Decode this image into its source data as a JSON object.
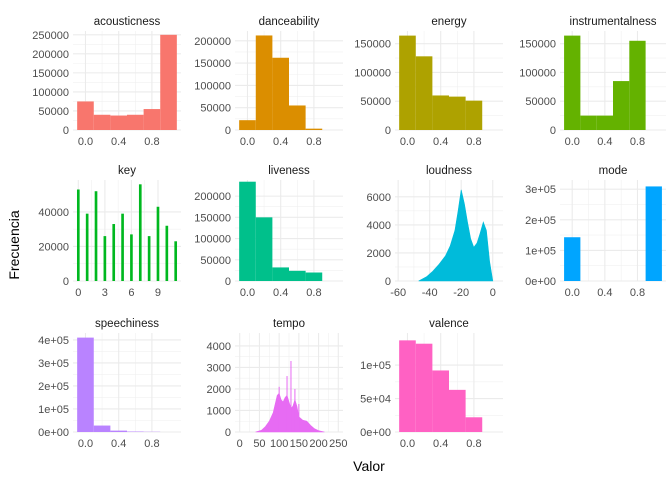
{
  "chart_data": {
    "type": "bar",
    "xlabel": "Valor",
    "ylabel": "Frecuencia",
    "panels": [
      {
        "title": "acousticness",
        "color": "#F8766D",
        "ymax": 260000,
        "xmin": -0.15,
        "xmax": 1.15,
        "yticks": [
          0,
          50000,
          100000,
          150000,
          200000,
          250000
        ],
        "ytick_labels": [
          "0",
          "50000",
          "100000",
          "150000",
          "200000",
          "250000"
        ],
        "xticks": [
          0,
          0.4,
          0.8
        ],
        "xtick_labels": [
          "0.0",
          "0.4",
          "0.8"
        ],
        "bins": [
          [
            -0.1,
            0.1,
            75000
          ],
          [
            0.1,
            0.3,
            40000
          ],
          [
            0.3,
            0.5,
            38000
          ],
          [
            0.5,
            0.7,
            40000
          ],
          [
            0.7,
            0.9,
            55000
          ],
          [
            0.9,
            1.1,
            250000
          ]
        ]
      },
      {
        "title": "danceability",
        "color": "#DB8E00",
        "ymax": 222000,
        "xmin": -0.15,
        "xmax": 1.15,
        "yticks": [
          0,
          50000,
          100000,
          150000,
          200000
        ],
        "ytick_labels": [
          "0",
          "50000",
          "100000",
          "150000",
          "200000"
        ],
        "xticks": [
          0,
          0.4,
          0.8
        ],
        "xtick_labels": [
          "0.0",
          "0.4",
          "0.8"
        ],
        "bins": [
          [
            -0.1,
            0.1,
            22000
          ],
          [
            0.1,
            0.3,
            212000
          ],
          [
            0.3,
            0.5,
            162000
          ],
          [
            0.5,
            0.7,
            55000
          ],
          [
            0.7,
            0.9,
            3000
          ]
        ]
      },
      {
        "title": "energy",
        "color": "#AEA200",
        "ymax": 172000,
        "xmin": -0.15,
        "xmax": 1.15,
        "yticks": [
          0,
          50000,
          100000,
          150000
        ],
        "ytick_labels": [
          "0",
          "50000",
          "100000",
          "150000"
        ],
        "xticks": [
          0,
          0.4,
          0.8
        ],
        "xtick_labels": [
          "0.0",
          "0.4",
          "0.8"
        ],
        "bins": [
          [
            -0.1,
            0.1,
            164000
          ],
          [
            0.1,
            0.3,
            128000
          ],
          [
            0.3,
            0.5,
            60000
          ],
          [
            0.5,
            0.7,
            58000
          ],
          [
            0.7,
            0.9,
            51000
          ]
        ]
      },
      {
        "title": "instrumentalness",
        "color": "#64B200",
        "ymax": 172000,
        "xmin": -0.15,
        "xmax": 1.15,
        "yticks": [
          0,
          50000,
          100000,
          150000
        ],
        "ytick_labels": [
          "0",
          "50000",
          "100000",
          "150000"
        ],
        "xticks": [
          0,
          0.4,
          0.8
        ],
        "xtick_labels": [
          "0.0",
          "0.4",
          "0.8"
        ],
        "bins": [
          [
            -0.1,
            0.1,
            164000
          ],
          [
            0.1,
            0.3,
            25000
          ],
          [
            0.3,
            0.5,
            25000
          ],
          [
            0.5,
            0.7,
            85000
          ],
          [
            0.7,
            0.9,
            155000
          ]
        ]
      },
      {
        "title": "key",
        "color": "#00B81F",
        "ymax": 58500,
        "xmin": -0.6,
        "xmax": 11.6,
        "yticks": [
          0,
          20000,
          40000
        ],
        "ytick_labels": [
          "0",
          "20000",
          "40000"
        ],
        "xticks": [
          0,
          3,
          6,
          9
        ],
        "xtick_labels": [
          "0",
          "3",
          "6",
          "9"
        ],
        "bins": [
          [
            -0.15,
            0.15,
            53000
          ],
          [
            0.85,
            1.15,
            39000
          ],
          [
            1.85,
            2.15,
            52000
          ],
          [
            2.85,
            3.15,
            26000
          ],
          [
            3.85,
            4.15,
            33000
          ],
          [
            4.85,
            5.15,
            39000
          ],
          [
            5.85,
            6.15,
            27000
          ],
          [
            6.85,
            7.15,
            56000
          ],
          [
            7.85,
            8.15,
            26000
          ],
          [
            8.85,
            9.15,
            43000
          ],
          [
            9.85,
            10.15,
            32000
          ],
          [
            10.85,
            11.15,
            23000
          ]
        ]
      },
      {
        "title": "liveness",
        "color": "#00C08B",
        "ymax": 238000,
        "xmin": -0.15,
        "xmax": 1.15,
        "yticks": [
          0,
          50000,
          100000,
          150000,
          200000
        ],
        "ytick_labels": [
          "0",
          "50000",
          "100000",
          "150000",
          "200000"
        ],
        "xticks": [
          0,
          0.4,
          0.8
        ],
        "xtick_labels": [
          "0.0",
          "0.4",
          "0.8"
        ],
        "bins": [
          [
            -0.1,
            0.1,
            234000
          ],
          [
            0.1,
            0.3,
            150000
          ],
          [
            0.3,
            0.5,
            32000
          ],
          [
            0.5,
            0.7,
            24000
          ],
          [
            0.7,
            0.9,
            20000
          ]
        ]
      },
      {
        "title": "loudness",
        "color": "#00BBDA",
        "ymax": 7200,
        "xmin": -62,
        "xmax": 6.5,
        "yticks": [
          0,
          2000,
          4000,
          6000
        ],
        "ytick_labels": [
          "0",
          "2000",
          "4000",
          "6000"
        ],
        "xticks": [
          -60,
          -40,
          -20,
          0
        ],
        "xtick_labels": [
          "-60",
          "-40",
          "-20",
          "0"
        ],
        "density": {
          "x": [
            -47,
            -42,
            -38,
            -34,
            -30,
            -27,
            -24,
            -22,
            -20,
            -18,
            -16,
            -14,
            -12,
            -10,
            -8,
            -6,
            -4,
            -2,
            0
          ],
          "y": [
            0,
            300,
            700,
            1200,
            1800,
            2500,
            3600,
            5000,
            6500,
            5500,
            4200,
            3000,
            2400,
            2700,
            3400,
            4200,
            3600,
            1400,
            0
          ]
        }
      },
      {
        "title": "mode",
        "color": "#00A5FF",
        "ymax": 330000,
        "xmin": -0.15,
        "xmax": 1.15,
        "yticks": [
          0,
          100000,
          200000,
          300000
        ],
        "ytick_labels": [
          "0e+00",
          "1e+05",
          "2e+05",
          "3e+05"
        ],
        "xticks": [
          0,
          0.4,
          0.8
        ],
        "xtick_labels": [
          "0.0",
          "0.4",
          "0.8"
        ],
        "bins": [
          [
            -0.1,
            0.1,
            143000
          ],
          [
            0.9,
            1.1,
            309000
          ]
        ]
      },
      {
        "title": "speechiness",
        "color": "#B983FF",
        "ymax": 430000,
        "xmin": -0.15,
        "xmax": 1.15,
        "yticks": [
          0,
          100000,
          200000,
          300000,
          400000
        ],
        "ytick_labels": [
          "0e+00",
          "1e+05",
          "2e+05",
          "3e+05",
          "4e+05"
        ],
        "xticks": [
          0,
          0.4,
          0.8
        ],
        "xtick_labels": [
          "0.0",
          "0.4",
          "0.8"
        ],
        "bins": [
          [
            -0.1,
            0.1,
            410000
          ],
          [
            0.1,
            0.3,
            28000
          ],
          [
            0.3,
            0.5,
            6000
          ],
          [
            0.5,
            0.7,
            2000
          ],
          [
            0.7,
            0.9,
            1000
          ]
        ]
      },
      {
        "title": "tempo",
        "color": "#E76BF3",
        "ymax": 4600,
        "xmin": -12,
        "xmax": 262,
        "yticks": [
          0,
          1000,
          2000,
          3000,
          4000
        ],
        "ytick_labels": [
          "0",
          "1000",
          "2000",
          "3000",
          "4000"
        ],
        "xticks": [
          0,
          50,
          100,
          150,
          200,
          250
        ],
        "xtick_labels": [
          "0",
          "50",
          "100",
          "150",
          "200",
          "250"
        ],
        "density": {
          "x": [
            40,
            55,
            65,
            75,
            85,
            95,
            100,
            105,
            110,
            115,
            120,
            125,
            130,
            135,
            140,
            145,
            150,
            160,
            170,
            180,
            190,
            200,
            215
          ],
          "y": [
            0,
            80,
            250,
            500,
            900,
            1700,
            1800,
            1500,
            1400,
            1600,
            1700,
            1400,
            1100,
            1200,
            1500,
            1200,
            700,
            550,
            500,
            300,
            150,
            60,
            0
          ]
        },
        "spikes": [
          [
            100,
            2100
          ],
          [
            120,
            2600
          ],
          [
            130,
            3300
          ],
          [
            140,
            2000
          ],
          [
            150,
            1300
          ]
        ]
      },
      {
        "title": "valence",
        "color": "#FF61C3",
        "ymax": 148000,
        "xmin": -0.15,
        "xmax": 1.15,
        "yticks": [
          0,
          50000,
          100000
        ],
        "ytick_labels": [
          "0e+00",
          "5e+04",
          "1e+05"
        ],
        "xticks": [
          0,
          0.4,
          0.8
        ],
        "xtick_labels": [
          "0.0",
          "0.4",
          "0.8"
        ],
        "bins": [
          [
            -0.1,
            0.1,
            137000
          ],
          [
            0.1,
            0.3,
            132000
          ],
          [
            0.3,
            0.5,
            92000
          ],
          [
            0.5,
            0.7,
            63000
          ],
          [
            0.7,
            0.9,
            22000
          ]
        ]
      }
    ]
  }
}
